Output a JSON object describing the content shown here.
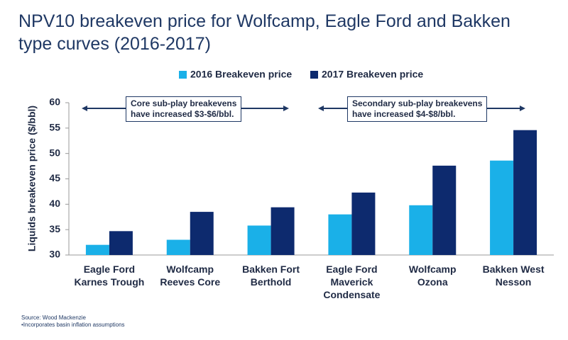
{
  "chart_data": {
    "type": "bar",
    "title": "NPV10 breakeven price for Wolfcamp, Eagle Ford and Bakken\ntype curves (2016-2017)",
    "y_label": "Liquids breakeven price ($/bbl)",
    "categories": [
      "Eagle Ford\nKarnes Trough",
      "Wolfcamp\nReeves Core",
      "Bakken Fort\nBerthold",
      "Eagle Ford\nMaverick\nCondensate",
      "Wolfcamp\nOzona",
      "Bakken West\nNesson"
    ],
    "series": [
      {
        "name": "2016 Breakeven price",
        "color": "#1ab0e8",
        "values": [
          32.0,
          33.0,
          35.8,
          38.0,
          39.8,
          48.6
        ]
      },
      {
        "name": "2017 Breakeven price",
        "color": "#0d2a6e",
        "values": [
          34.7,
          38.5,
          39.4,
          42.3,
          47.6,
          54.6
        ]
      }
    ],
    "ylim": [
      30,
      60
    ],
    "yticks": [
      30,
      35,
      40,
      45,
      50,
      55,
      60
    ],
    "annotations": [
      "Core sub-play breakevens\nhave increased $3-$6/bbl.",
      "Secondary sub-play breakevens\nhave increased $4-$8/bbl."
    ],
    "footnotes": [
      "Source: Wood Mackenzie",
      "•Incorporates basin inflation assumptions"
    ]
  }
}
